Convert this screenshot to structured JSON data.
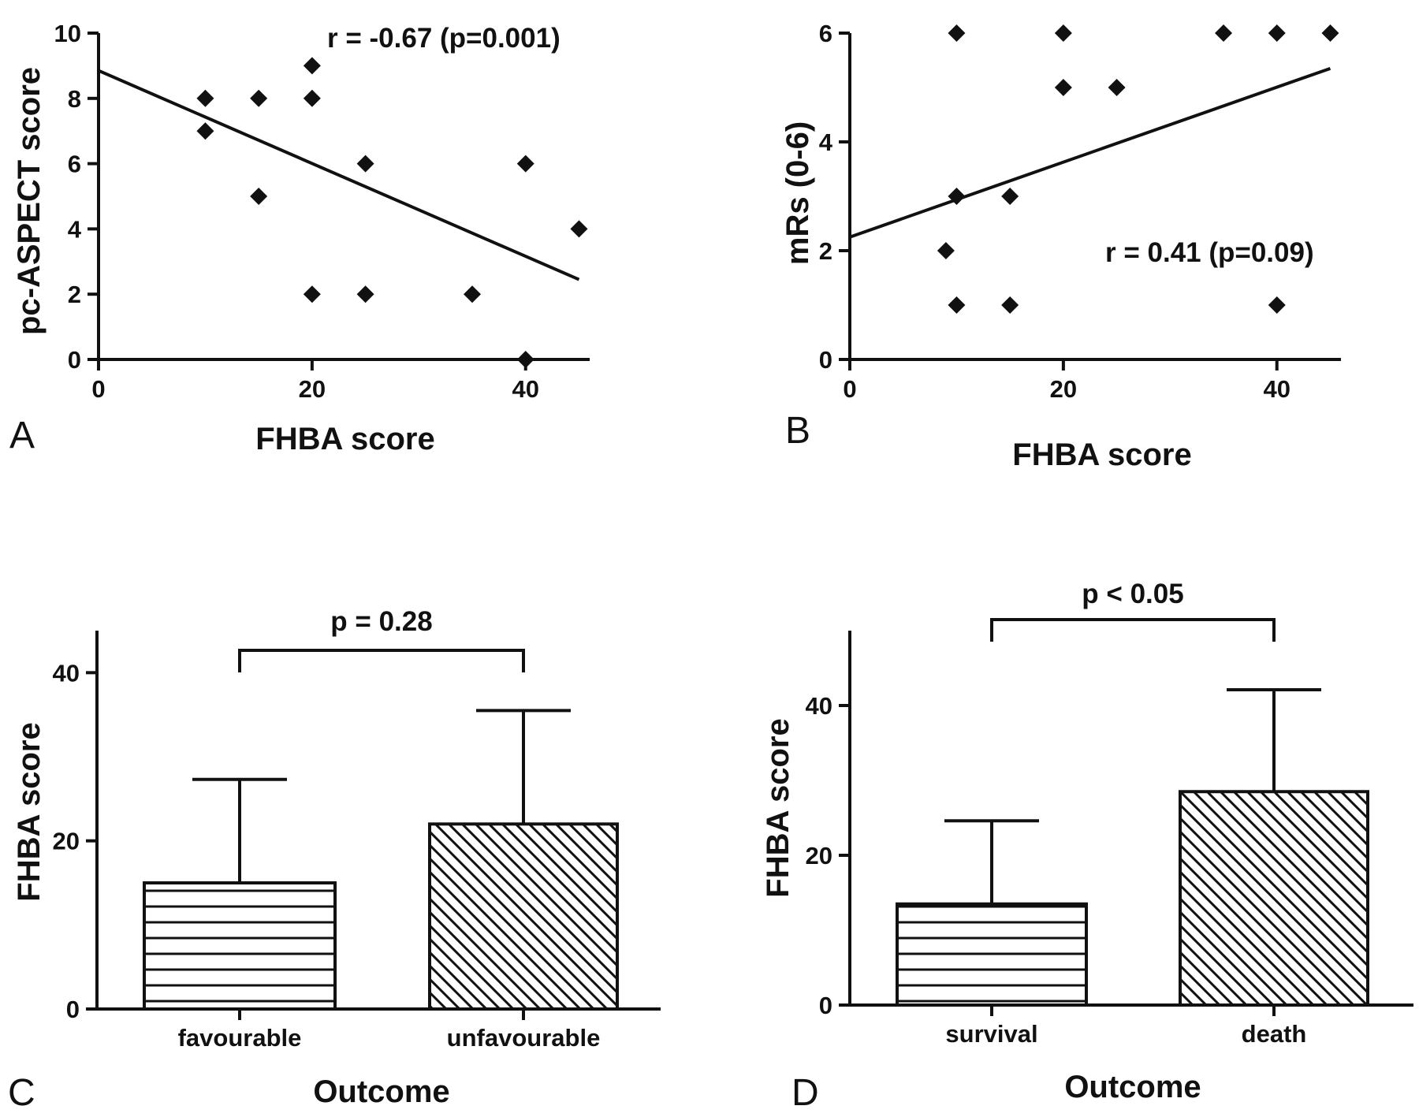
{
  "chart_data": [
    {
      "panel": "A",
      "type": "scatter",
      "xlabel": "FHBA score",
      "ylabel": "pc-ASPECT score",
      "xlim": [
        0,
        46
      ],
      "ylim": [
        0,
        10
      ],
      "xticks": [
        "0",
        "20",
        "40"
      ],
      "yticks": [
        "0",
        "2",
        "4",
        "6",
        "8",
        "10"
      ],
      "annotation": "r = -0.67 (p=0.001)",
      "points": [
        [
          10,
          8
        ],
        [
          10,
          7
        ],
        [
          15,
          8
        ],
        [
          15,
          5
        ],
        [
          20,
          9
        ],
        [
          20,
          8
        ],
        [
          20,
          2
        ],
        [
          25,
          6
        ],
        [
          25,
          2
        ],
        [
          35,
          2
        ],
        [
          40,
          6
        ],
        [
          40,
          0
        ],
        [
          45,
          4
        ]
      ],
      "regression_line": [
        [
          0,
          8.85
        ],
        [
          45,
          2.45
        ]
      ]
    },
    {
      "panel": "B",
      "type": "scatter",
      "xlabel": "FHBA score",
      "ylabel": "mRs (0-6)",
      "xlim": [
        0,
        46
      ],
      "ylim": [
        0,
        6
      ],
      "xticks": [
        "0",
        "20",
        "40"
      ],
      "yticks": [
        "0",
        "2",
        "4",
        "6"
      ],
      "annotation": "r = 0.41 (p=0.09)",
      "points": [
        [
          10,
          6
        ],
        [
          20,
          6
        ],
        [
          35,
          6
        ],
        [
          40,
          6
        ],
        [
          45,
          6
        ],
        [
          20,
          5
        ],
        [
          25,
          5
        ],
        [
          10,
          3
        ],
        [
          15,
          3
        ],
        [
          9,
          2
        ],
        [
          10,
          1
        ],
        [
          15,
          1
        ],
        [
          40,
          1
        ]
      ],
      "regression_line": [
        [
          0,
          2.25
        ],
        [
          45,
          5.35
        ]
      ]
    },
    {
      "panel": "C",
      "type": "bar",
      "xlabel": "Outcome",
      "ylabel": "FHBA score",
      "ylim": [
        0,
        45
      ],
      "yticks": [
        "0",
        "20",
        "40"
      ],
      "categories": [
        "favourable",
        "unfavourable"
      ],
      "values": [
        15,
        22
      ],
      "error_upper": [
        27.3,
        35.5
      ],
      "patterns": [
        "horizontal",
        "diagonal"
      ],
      "annotation": "p = 0.28"
    },
    {
      "panel": "D",
      "type": "bar",
      "xlabel": "Outcome",
      "ylabel": "FHBA score",
      "ylim": [
        0,
        50
      ],
      "yticks": [
        "0",
        "20",
        "40"
      ],
      "categories": [
        "survival",
        "death"
      ],
      "values": [
        13.5,
        28.5
      ],
      "error_upper": [
        24.6,
        42.1
      ],
      "patterns": [
        "horizontal",
        "diagonal"
      ],
      "annotation": "p < 0.05"
    }
  ]
}
